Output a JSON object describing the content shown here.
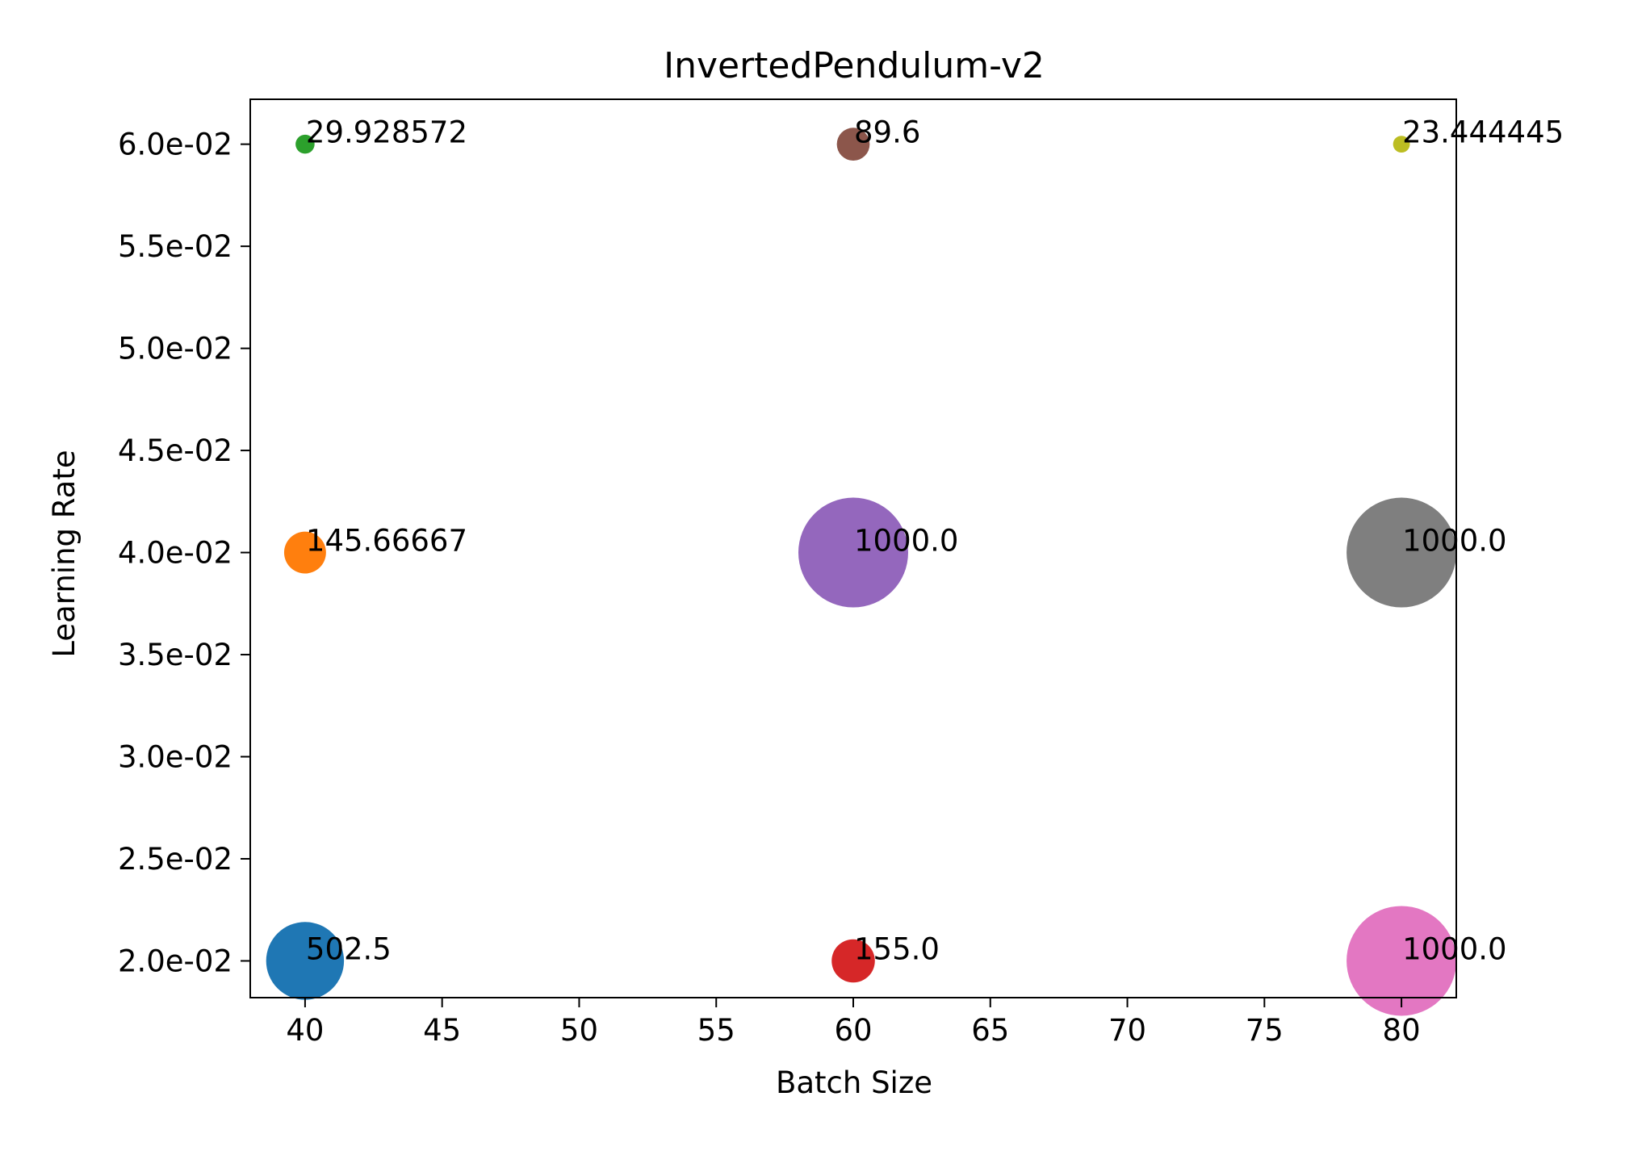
{
  "chart_data": {
    "type": "scatter",
    "title": "InvertedPendulum-v2",
    "xlabel": "Batch Size",
    "ylabel": "Learning Rate",
    "xlim": [
      38,
      82
    ],
    "ylim": [
      0.0182,
      0.0622
    ],
    "x_ticks": [
      40,
      45,
      50,
      55,
      60,
      65,
      70,
      75,
      80
    ],
    "x_tick_labels": [
      "40",
      "45",
      "50",
      "55",
      "60",
      "65",
      "70",
      "75",
      "80"
    ],
    "y_ticks": [
      0.02,
      0.025,
      0.03,
      0.035,
      0.04,
      0.045,
      0.05,
      0.055,
      0.06
    ],
    "y_tick_labels": [
      "2.0e-02",
      "2.5e-02",
      "3.0e-02",
      "3.5e-02",
      "4.0e-02",
      "4.5e-02",
      "5.0e-02",
      "5.5e-02",
      "6.0e-02"
    ],
    "grid": false,
    "points": [
      {
        "x": 40,
        "y": 0.02,
        "value": 502.5,
        "label": "502.5",
        "color": "#1f77b4"
      },
      {
        "x": 40,
        "y": 0.04,
        "value": 145.66667,
        "label": "145.66667",
        "color": "#ff7f0e"
      },
      {
        "x": 40,
        "y": 0.06,
        "value": 29.928572,
        "label": "29.928572",
        "color": "#2ca02c"
      },
      {
        "x": 60,
        "y": 0.02,
        "value": 155.0,
        "label": "155.0",
        "color": "#d62728"
      },
      {
        "x": 60,
        "y": 0.04,
        "value": 1000.0,
        "label": "1000.0",
        "color": "#9467bd"
      },
      {
        "x": 60,
        "y": 0.06,
        "value": 89.6,
        "label": "89.6",
        "color": "#8c564b"
      },
      {
        "x": 80,
        "y": 0.02,
        "value": 1000.0,
        "label": "1000.0",
        "color": "#e377c2"
      },
      {
        "x": 80,
        "y": 0.04,
        "value": 1000.0,
        "label": "1000.0",
        "color": "#7f7f7f"
      },
      {
        "x": 80,
        "y": 0.06,
        "value": 23.444445,
        "label": "23.444445",
        "color": "#bcbd22"
      }
    ]
  }
}
